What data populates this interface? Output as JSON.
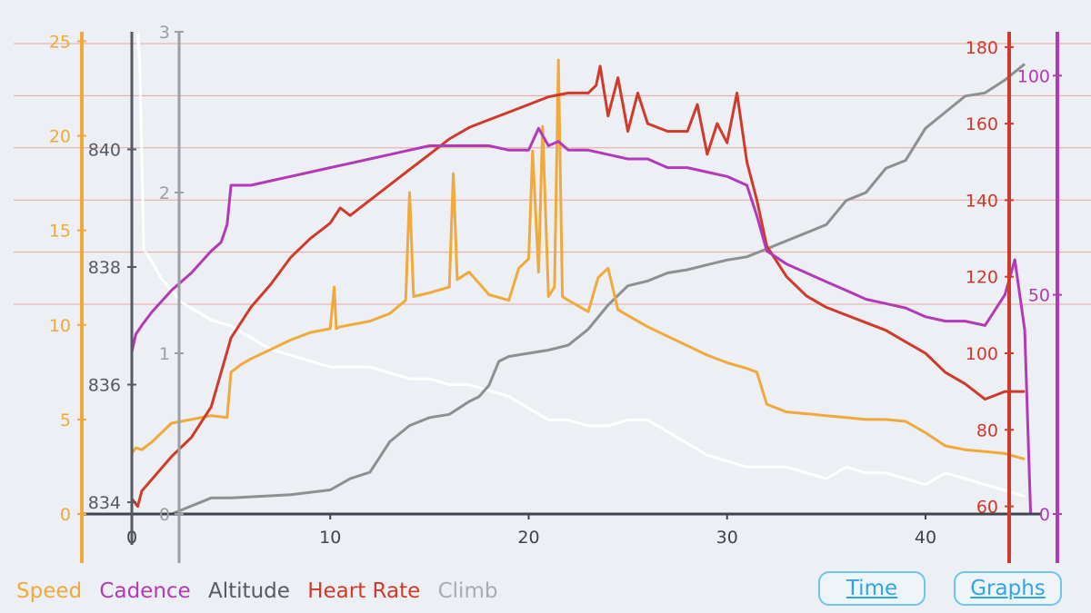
{
  "legend": {
    "speed": {
      "label": "Speed",
      "color": "#f0a93a"
    },
    "cadence": {
      "label": "Cadence",
      "color": "#b23ab8"
    },
    "altitude": {
      "label": "Altitude",
      "color": "#555a63"
    },
    "heart_rate": {
      "label": "Heart Rate",
      "color": "#cf3a2a"
    },
    "climb": {
      "label": "Climb",
      "color": "#a9adb3"
    }
  },
  "buttons": {
    "time": "Time",
    "graphs": "Graphs"
  },
  "chart_data": {
    "type": "line",
    "grid": "horizontal",
    "x_axis": {
      "range": [
        0,
        45.5
      ],
      "ticks": [
        "0",
        "10",
        "20",
        "30",
        "40"
      ],
      "tick_values": [
        0,
        10,
        20,
        30,
        40
      ]
    },
    "axes": {
      "speed": {
        "range": [
          0,
          25.5
        ],
        "ticks": [
          "0",
          "5",
          "10",
          "15",
          "20",
          "25"
        ],
        "tick_values": [
          0,
          5,
          10,
          15,
          20,
          25
        ],
        "color": "#f0a93a"
      },
      "altitude": {
        "range": [
          833.8,
          842
        ],
        "ticks": [
          "834",
          "836",
          "838",
          "840"
        ],
        "tick_values": [
          834,
          836,
          838,
          840
        ],
        "color": "#555a63"
      },
      "climb": {
        "range": [
          0,
          3
        ],
        "ticks": [
          "0",
          "1",
          "2",
          "3"
        ],
        "tick_values": [
          0,
          1,
          2,
          3
        ],
        "color": "#9a9ea5"
      },
      "heart_rate": {
        "range": [
          58,
          184
        ],
        "ticks": [
          "60",
          "80",
          "100",
          "120",
          "140",
          "160",
          "180"
        ],
        "tick_values": [
          60,
          80,
          100,
          120,
          140,
          160,
          180
        ],
        "color": "#cf3a2a"
      },
      "cadence": {
        "range": [
          0,
          110
        ],
        "ticks": [
          "0",
          "50",
          "100"
        ],
        "tick_values": [
          0,
          50,
          100
        ],
        "color": "#b23ab8"
      }
    },
    "series": [
      {
        "name": "Altitude",
        "axis": "altitude",
        "color": "#ffffff",
        "x": [
          0.3,
          0.4,
          0.6,
          1,
          1.5,
          2,
          2.5,
          3,
          3.5,
          4,
          5,
          6,
          7,
          8,
          9,
          10,
          11,
          12,
          13,
          14,
          15,
          16,
          17,
          18,
          19,
          20,
          21,
          22,
          23,
          24,
          25,
          26,
          27,
          28,
          29,
          30,
          31,
          32,
          33,
          34,
          35,
          36,
          37,
          38,
          39,
          40,
          41,
          42,
          43,
          44,
          45
        ],
        "y": [
          842,
          841.5,
          838.3,
          838.1,
          837.8,
          837.6,
          837.4,
          837.3,
          837.2,
          837.1,
          837,
          836.8,
          836.6,
          836.5,
          836.4,
          836.3,
          836.3,
          836.3,
          836.2,
          836.1,
          836.1,
          836,
          836,
          835.9,
          835.8,
          835.6,
          835.4,
          835.4,
          835.3,
          835.3,
          835.4,
          835.4,
          835.2,
          835.0,
          834.8,
          834.7,
          834.6,
          834.6,
          834.6,
          834.5,
          834.4,
          834.6,
          834.5,
          834.5,
          834.4,
          834.3,
          834.5,
          834.4,
          834.3,
          834.2,
          834.1
        ]
      },
      {
        "name": "Climb",
        "axis": "climb",
        "color": "#8d8f93",
        "x": [
          0,
          2,
          3,
          4,
          5,
          8,
          10,
          11,
          12,
          13,
          14,
          15,
          16,
          17,
          17.5,
          18,
          18.5,
          19,
          20,
          21,
          22,
          23,
          24,
          25,
          26,
          27,
          28,
          29,
          30,
          31,
          32,
          33,
          34,
          35,
          36,
          37,
          38,
          39,
          40,
          41,
          42,
          43,
          44,
          45
        ],
        "y": [
          0,
          0,
          0.05,
          0.1,
          0.1,
          0.12,
          0.15,
          0.22,
          0.26,
          0.45,
          0.55,
          0.6,
          0.62,
          0.7,
          0.73,
          0.8,
          0.95,
          0.98,
          1,
          1.02,
          1.05,
          1.15,
          1.3,
          1.42,
          1.45,
          1.5,
          1.52,
          1.55,
          1.58,
          1.6,
          1.65,
          1.7,
          1.75,
          1.8,
          1.95,
          2.0,
          2.15,
          2.2,
          2.4,
          2.5,
          2.6,
          2.62,
          2.7,
          2.8
        ]
      },
      {
        "name": "Speed",
        "axis": "speed",
        "color": "#f0a93a",
        "x": [
          0,
          0.2,
          0.5,
          1,
          2,
          3,
          4,
          4.8,
          5,
          5.5,
          6,
          7,
          8,
          9,
          10,
          10.2,
          10.3,
          10.5,
          11,
          12,
          13,
          13.8,
          14,
          14.2,
          15,
          16,
          16.2,
          16.4,
          17,
          18,
          19,
          19.5,
          20,
          20.2,
          20.5,
          20.7,
          21,
          21.3,
          21.5,
          21.7,
          22,
          23,
          23.5,
          24,
          24.5,
          25,
          26,
          27,
          28,
          29,
          30,
          31,
          31.5,
          32,
          33,
          34,
          35,
          36,
          37,
          38,
          39,
          40,
          41,
          42,
          43,
          44,
          45
        ],
        "y": [
          3.2,
          3.5,
          3.4,
          3.8,
          4.8,
          5.0,
          5.2,
          5.1,
          7.5,
          7.9,
          8.2,
          8.7,
          9.2,
          9.6,
          9.8,
          12.0,
          9.8,
          9.9,
          10.0,
          10.2,
          10.6,
          11.3,
          17.0,
          11.5,
          11.7,
          12.0,
          18.0,
          12.4,
          12.8,
          11.6,
          11.3,
          13.0,
          13.5,
          19.2,
          12.8,
          20.5,
          11.5,
          12.0,
          24.0,
          11.5,
          11.3,
          10.7,
          12.5,
          13.0,
          10.8,
          10.5,
          9.9,
          9.4,
          8.9,
          8.4,
          8.0,
          7.7,
          7.5,
          5.8,
          5.4,
          5.3,
          5.2,
          5.1,
          5.0,
          5.0,
          4.9,
          4.3,
          3.6,
          3.4,
          3.3,
          3.2,
          2.9
        ]
      },
      {
        "name": "Heart Rate",
        "axis": "heart_rate",
        "color": "#cf3a2a",
        "x": [
          0,
          0.3,
          0.5,
          1,
          2,
          3,
          4,
          4.5,
          5,
          6,
          7,
          8,
          9,
          10,
          10.5,
          11,
          12,
          13,
          14,
          15,
          16,
          17,
          18,
          19,
          20,
          21,
          22,
          23,
          23.4,
          23.6,
          24,
          24.5,
          25,
          25.5,
          26,
          27,
          28,
          28.5,
          29,
          29.5,
          30,
          30.5,
          31,
          31.5,
          32,
          33,
          34,
          35,
          36,
          37,
          38,
          39,
          40,
          41,
          42,
          43,
          44,
          45
        ],
        "y": [
          62,
          60,
          64,
          67,
          73,
          78,
          86,
          95,
          104,
          112,
          118,
          125,
          130,
          134,
          138,
          136,
          140,
          144,
          148,
          152,
          156,
          159,
          161,
          163,
          165,
          167,
          168,
          168,
          170,
          175,
          162,
          172,
          158,
          168,
          160,
          158,
          158,
          165,
          152,
          160,
          155,
          168,
          150,
          140,
          128,
          120,
          115,
          112,
          110,
          108,
          106,
          103,
          100,
          95,
          92,
          88,
          90,
          90
        ]
      },
      {
        "name": "Cadence",
        "axis": "cadence",
        "color": "#b23ab8",
        "x": [
          0,
          0.2,
          0.5,
          1,
          2,
          3,
          4,
          4.5,
          4.8,
          5,
          6,
          7,
          8,
          9,
          10,
          11,
          12,
          13,
          14,
          15,
          16,
          17,
          18,
          19,
          20,
          20.5,
          21,
          21.5,
          22,
          23,
          24,
          25,
          26,
          27,
          28,
          29,
          30,
          31,
          31.5,
          32,
          33,
          34,
          35,
          36,
          37,
          38,
          39,
          40,
          41,
          42,
          43,
          44,
          44.5,
          45,
          45.3
        ],
        "y": [
          37,
          41,
          43,
          46,
          51,
          55,
          60,
          62,
          66,
          75,
          75,
          76,
          77,
          78,
          79,
          80,
          81,
          82,
          83,
          84,
          84,
          84,
          84,
          83,
          83,
          88,
          84,
          85,
          83,
          83,
          82,
          81,
          81,
          79,
          79,
          78,
          77,
          75,
          68,
          60,
          57,
          55,
          53,
          51,
          49,
          48,
          47,
          45,
          44,
          44,
          43,
          50,
          58,
          42,
          0
        ]
      }
    ]
  }
}
